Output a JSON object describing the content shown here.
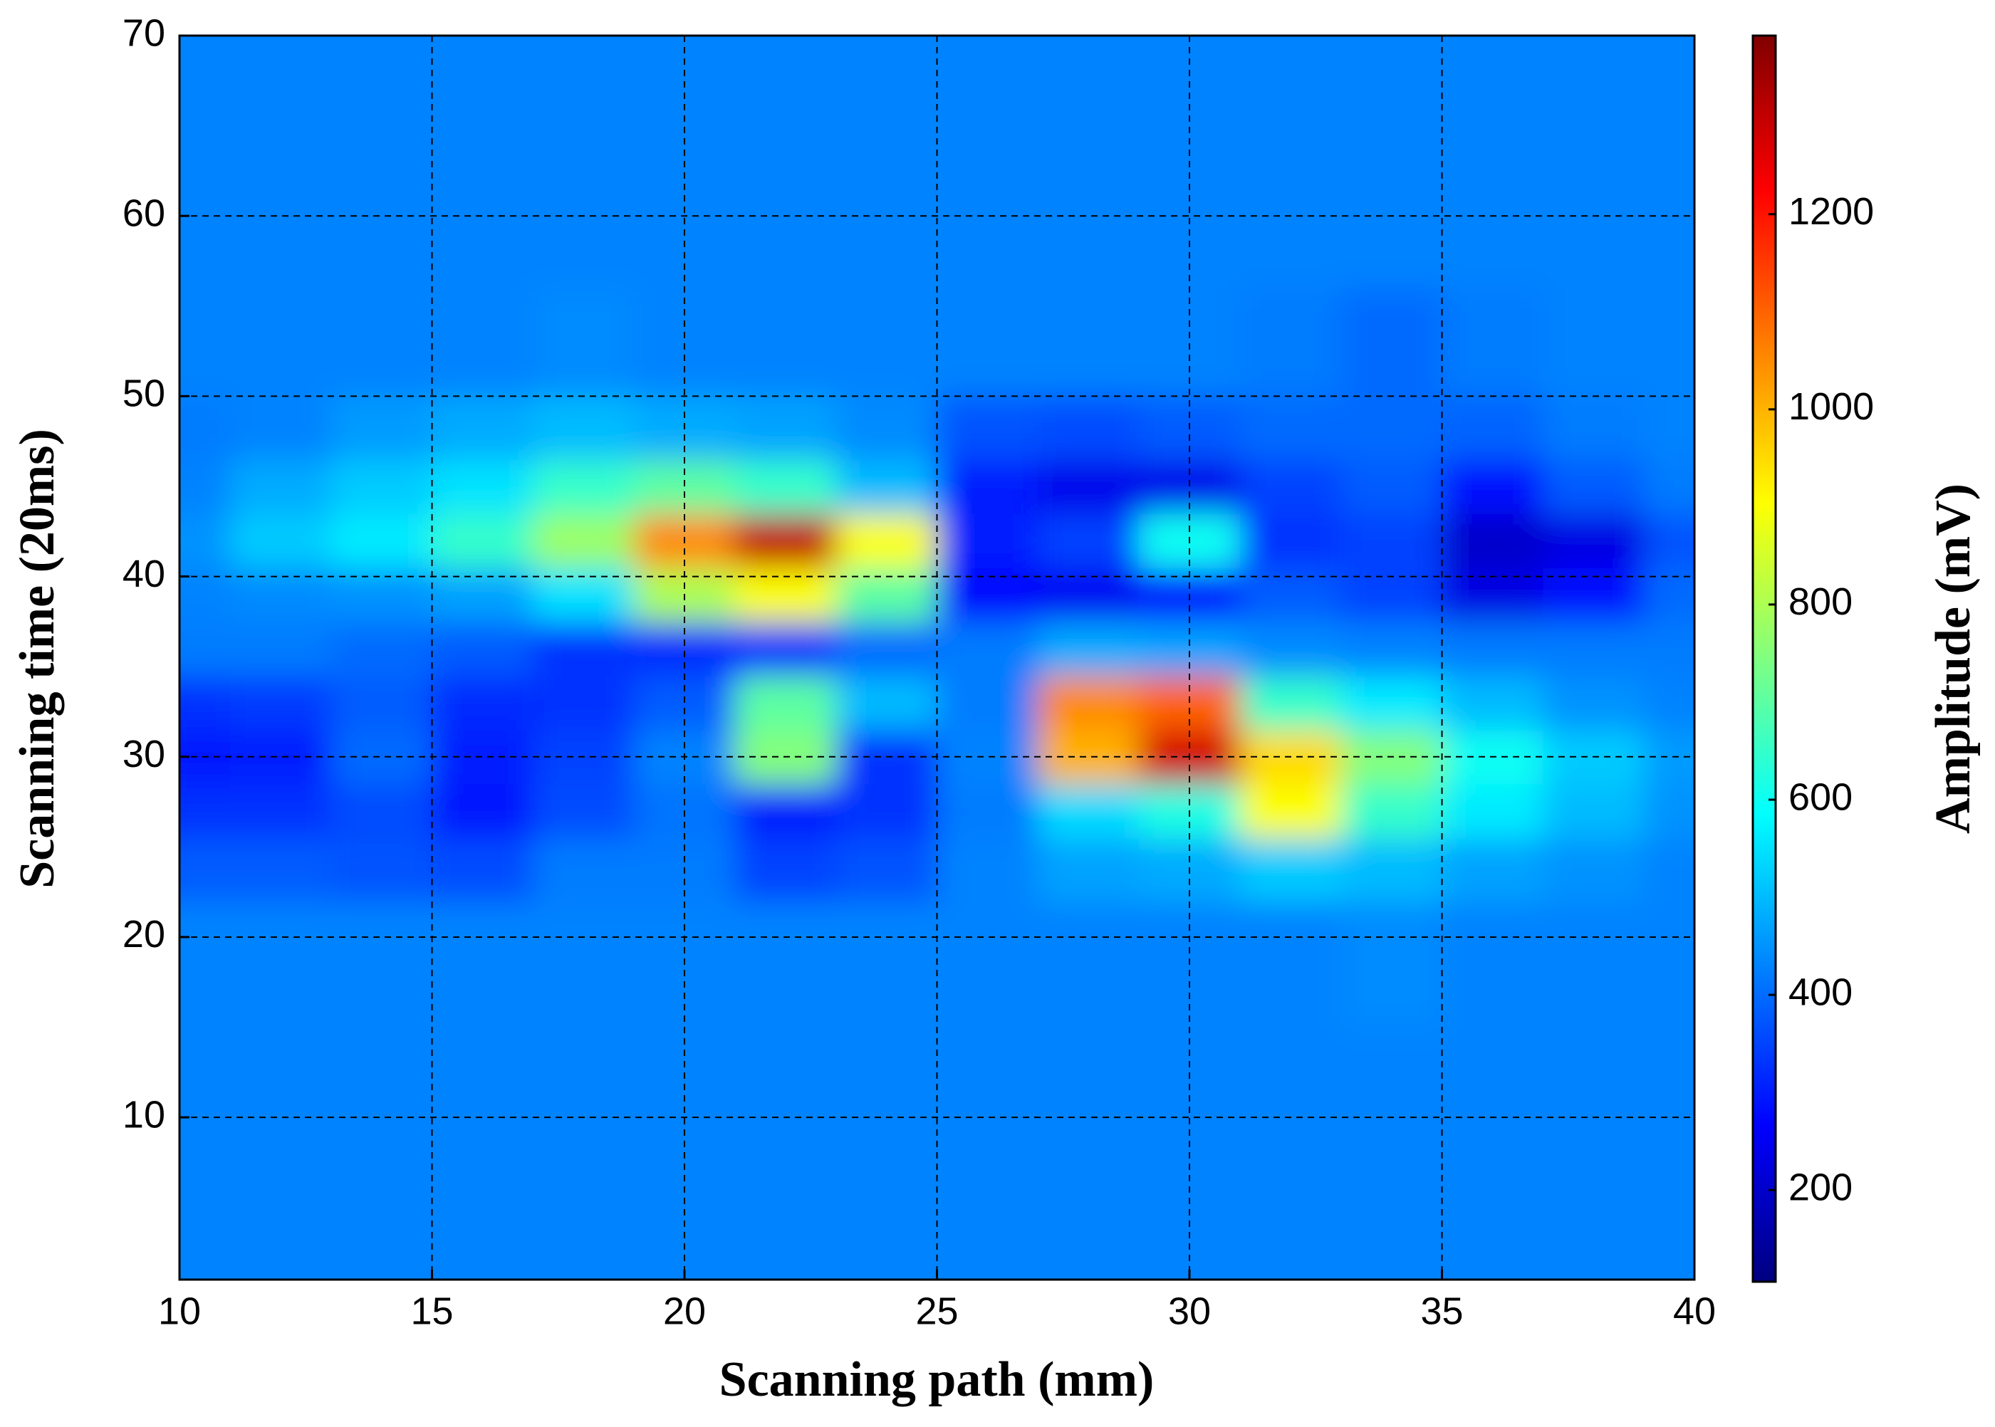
{
  "chart_data": {
    "type": "contourf",
    "colormap": "jet",
    "x_label": "Scanning path (mm)",
    "y_label": "Scanning time (20ms)",
    "colorbar_label": "Amplitude (mV)",
    "xlim": [
      10,
      40
    ],
    "ylim": [
      1,
      70
    ],
    "clim": [
      106,
      1383
    ],
    "xticks": [
      10,
      15,
      20,
      25,
      30,
      35,
      40
    ],
    "yticks": [
      10,
      20,
      30,
      40,
      50,
      60,
      70
    ],
    "cticks": [
      200,
      400,
      600,
      800,
      1000,
      1200
    ],
    "grid": true,
    "x": [
      10,
      12,
      14,
      16,
      18,
      20,
      22,
      24,
      26,
      28,
      30,
      32,
      34,
      36,
      38,
      40
    ],
    "y": [
      1,
      10,
      20,
      24,
      27,
      30,
      33,
      36,
      39,
      42,
      45,
      48,
      52,
      60,
      70
    ],
    "z": [
      [
        430,
        430,
        430,
        430,
        430,
        430,
        430,
        430,
        430,
        430,
        430,
        430,
        430,
        430,
        430,
        430
      ],
      [
        430,
        430,
        430,
        430,
        430,
        430,
        430,
        430,
        430,
        430,
        430,
        430,
        430,
        430,
        430,
        430
      ],
      [
        430,
        430,
        430,
        430,
        430,
        430,
        430,
        430,
        430,
        430,
        430,
        430,
        440,
        430,
        430,
        430
      ],
      [
        380,
        380,
        370,
        360,
        420,
        420,
        350,
        370,
        430,
        470,
        480,
        520,
        500,
        470,
        450,
        430
      ],
      [
        330,
        330,
        360,
        290,
        360,
        410,
        300,
        330,
        420,
        540,
        620,
        900,
        650,
        560,
        500,
        450
      ],
      [
        290,
        300,
        400,
        300,
        350,
        430,
        750,
        330,
        430,
        1000,
        1280,
        950,
        750,
        600,
        520,
        460
      ],
      [
        330,
        340,
        380,
        320,
        330,
        380,
        700,
        500,
        420,
        1050,
        1100,
        650,
        560,
        500,
        450,
        430
      ],
      [
        420,
        420,
        400,
        380,
        330,
        320,
        330,
        400,
        420,
        480,
        470,
        440,
        430,
        420,
        420,
        420
      ],
      [
        430,
        440,
        450,
        470,
        550,
        800,
        900,
        700,
        270,
        250,
        280,
        380,
        350,
        230,
        280,
        400
      ],
      [
        450,
        520,
        560,
        650,
        780,
        1050,
        1300,
        900,
        300,
        350,
        600,
        330,
        350,
        200,
        230,
        370
      ],
      [
        430,
        480,
        520,
        550,
        650,
        700,
        650,
        500,
        300,
        240,
        240,
        350,
        380,
        280,
        380,
        420
      ],
      [
        420,
        430,
        460,
        480,
        500,
        480,
        470,
        440,
        370,
        360,
        380,
        400,
        400,
        390,
        420,
        430
      ],
      [
        430,
        430,
        430,
        430,
        440,
        430,
        430,
        430,
        430,
        430,
        430,
        420,
        400,
        420,
        430,
        430
      ],
      [
        430,
        430,
        430,
        430,
        430,
        430,
        430,
        430,
        430,
        430,
        430,
        430,
        430,
        430,
        430,
        430
      ],
      [
        430,
        430,
        430,
        430,
        430,
        430,
        430,
        430,
        430,
        430,
        430,
        430,
        430,
        430,
        430,
        430
      ]
    ]
  }
}
